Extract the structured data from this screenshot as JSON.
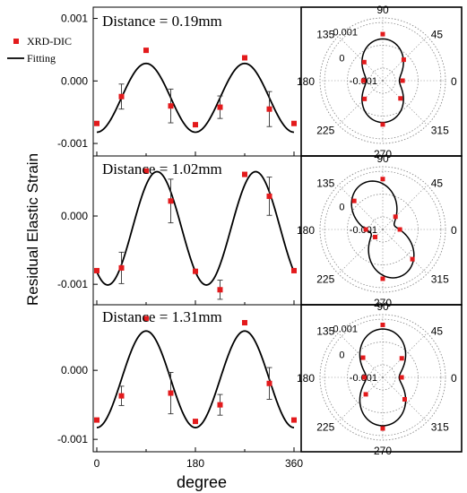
{
  "figure": {
    "ylabel": "Residual Elastic Strain",
    "xlabel": "degree",
    "legend": {
      "items": [
        {
          "label": "XRD-DIC",
          "marker": "square",
          "color": "#e31a1c"
        },
        {
          "label": "Fitting",
          "marker": "line",
          "color": "#000000"
        }
      ]
    },
    "colors": {
      "data": "#e31a1c",
      "fit": "#000000",
      "grid": "#888888"
    }
  },
  "chart_data": [
    {
      "type": "scatter",
      "title": "Distance = 0.19mm",
      "x_ticks": [
        "0",
        "180",
        "360"
      ],
      "y_ticks": [
        "0.001",
        "0.000",
        "-0.001"
      ],
      "xlim": [
        0,
        360
      ],
      "ylim": [
        -0.0012,
        0.00118
      ],
      "fit": {
        "offset": -0.00027,
        "amplitude": 0.00055,
        "phase_deg": 90
      },
      "series": [
        {
          "name": "XRD-DIC",
          "x": [
            0,
            45,
            90,
            135,
            180,
            225,
            270,
            315,
            360
          ],
          "y": [
            -0.00068,
            -0.00025,
            0.00049,
            -0.0004,
            -0.0007,
            -0.00042,
            0.00037,
            -0.00045,
            -0.00068
          ],
          "err": [
            0,
            0.0002,
            0,
            0.00027,
            0,
            0.00018,
            0,
            0.00028,
            0
          ]
        }
      ],
      "polar": {
        "rings": [
          "0.001",
          "0",
          "-0.001"
        ],
        "angles": [
          "90",
          "45",
          "0",
          "315",
          "270",
          "225",
          "180",
          "135"
        ],
        "rmin": -0.00155,
        "rmax": 0.0012,
        "points": [
          {
            "deg": 0,
            "r": -0.00068
          },
          {
            "deg": 45,
            "r": -0.00025
          },
          {
            "deg": 90,
            "r": 0.00049
          },
          {
            "deg": 135,
            "r": -0.0004
          },
          {
            "deg": 180,
            "r": -0.0007
          },
          {
            "deg": 225,
            "r": -0.00042
          },
          {
            "deg": 270,
            "r": 0.00037
          },
          {
            "deg": 315,
            "r": -0.00045
          }
        ]
      }
    },
    {
      "type": "scatter",
      "title": "Distance = 1.02mm",
      "x_ticks": [
        "0",
        "180",
        "360"
      ],
      "y_ticks": [
        "0.000",
        "-0.001"
      ],
      "xlim": [
        0,
        360
      ],
      "ylim": [
        -0.0013,
        0.00088
      ],
      "fit": {
        "offset": -0.00018,
        "amplitude": 0.00083,
        "phase_deg": 110
      },
      "series": [
        {
          "name": "XRD-DIC",
          "x": [
            0,
            45,
            90,
            135,
            180,
            225,
            270,
            315,
            360
          ],
          "y": [
            -0.0008,
            -0.00076,
            0.00066,
            0.00022,
            -0.00081,
            -0.00108,
            0.00061,
            0.00029,
            -0.0008
          ],
          "err": [
            0,
            0.00023,
            0,
            0.00032,
            0,
            0.00014,
            0,
            0.00028,
            0
          ]
        }
      ],
      "polar": {
        "rings": [
          "0",
          "-0.001"
        ],
        "angles": [
          "90",
          "45",
          "0",
          "315",
          "270",
          "225",
          "180",
          "135"
        ],
        "rmin": -0.00155,
        "rmax": 0.0012,
        "points": [
          {
            "deg": 0,
            "r": -0.0008
          },
          {
            "deg": 45,
            "r": -0.00076
          },
          {
            "deg": 90,
            "r": 0.00066
          },
          {
            "deg": 135,
            "r": 0.00022
          },
          {
            "deg": 180,
            "r": -0.00081
          },
          {
            "deg": 225,
            "r": -0.00108
          },
          {
            "deg": 270,
            "r": 0.00061
          },
          {
            "deg": 315,
            "r": 0.00029
          }
        ]
      }
    },
    {
      "type": "scatter",
      "title": "Distance = 1.31mm",
      "x_ticks": [
        "0",
        "180",
        "360"
      ],
      "y_ticks": [
        "0.000",
        "-0.001"
      ],
      "xlim": [
        0,
        360
      ],
      "ylim": [
        -0.00118,
        0.00095
      ],
      "fit": {
        "offset": -0.00013,
        "amplitude": 0.0007,
        "phase_deg": 90
      },
      "series": [
        {
          "name": "XRD-DIC",
          "x": [
            0,
            45,
            90,
            135,
            180,
            225,
            270,
            315,
            360
          ],
          "y": [
            -0.00072,
            -0.00037,
            0.00075,
            -0.00033,
            -0.00074,
            -0.0005,
            0.00069,
            -0.00019,
            -0.00072
          ],
          "err": [
            0,
            0.00014,
            0,
            0.0003,
            0,
            0.00015,
            0,
            0.00023,
            0
          ]
        }
      ],
      "polar": {
        "rings": [
          "0.001",
          "0",
          "-0.001"
        ],
        "angles": [
          "90",
          "45",
          "0",
          "315",
          "270",
          "225",
          "180",
          "135"
        ],
        "rmin": -0.00155,
        "rmax": 0.0012,
        "points": [
          {
            "deg": 0,
            "r": -0.00072
          },
          {
            "deg": 45,
            "r": -0.00037
          },
          {
            "deg": 90,
            "r": 0.00075
          },
          {
            "deg": 135,
            "r": -0.00033
          },
          {
            "deg": 180,
            "r": -0.00074
          },
          {
            "deg": 225,
            "r": -0.0005
          },
          {
            "deg": 270,
            "r": 0.00069
          },
          {
            "deg": 315,
            "r": -0.00019
          }
        ]
      }
    }
  ]
}
